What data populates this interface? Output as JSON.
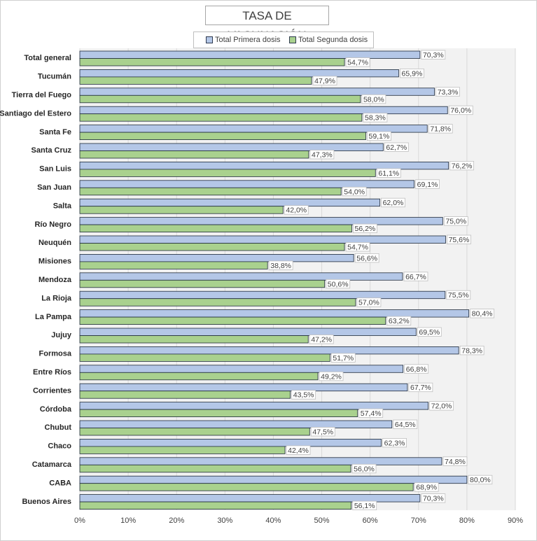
{
  "chart_data": {
    "type": "bar",
    "orientation": "horizontal",
    "title": "TASA DE VACUNACIÓN",
    "categories": [
      "Total general",
      "Tucumán",
      "Tierra del Fuego",
      "Santiago del Estero",
      "Santa Fe",
      "Santa Cruz",
      "San Luis",
      "San Juan",
      "Salta",
      "Río Negro",
      "Neuquén",
      "Misiones",
      "Mendoza",
      "La Rioja",
      "La Pampa",
      "Jujuy",
      "Formosa",
      "Entre Ríos",
      "Corrientes",
      "Córdoba",
      "Chubut",
      "Chaco",
      "Catamarca",
      "CABA",
      "Buenos Aires"
    ],
    "series": [
      {
        "name": "Total Primera dosis",
        "color": "#b4c7e7",
        "values": [
          70.3,
          65.9,
          73.3,
          76.0,
          71.8,
          62.7,
          76.2,
          69.1,
          62.0,
          75.0,
          75.6,
          56.6,
          66.7,
          75.5,
          80.4,
          69.5,
          78.3,
          66.8,
          67.7,
          72.0,
          64.5,
          62.3,
          74.8,
          80.0,
          70.3
        ],
        "labels": [
          "70,3%",
          "65,9%",
          "73,3%",
          "76,0%",
          "71,8%",
          "62,7%",
          "76,2%",
          "69,1%",
          "62,0%",
          "75,0%",
          "75,6%",
          "56,6%",
          "66,7%",
          "75,5%",
          "80,4%",
          "69,5%",
          "78,3%",
          "66,8%",
          "67,7%",
          "72,0%",
          "64,5%",
          "62,3%",
          "74,8%",
          "80,0%",
          "70,3%"
        ]
      },
      {
        "name": "Total Segunda dosis",
        "color": "#a9d18e",
        "values": [
          54.7,
          47.9,
          58.0,
          58.3,
          59.1,
          47.3,
          61.1,
          54.0,
          42.0,
          56.2,
          54.7,
          38.8,
          50.6,
          57.0,
          63.2,
          47.2,
          51.7,
          49.2,
          43.5,
          57.4,
          47.5,
          42.4,
          56.0,
          68.9,
          56.1
        ],
        "labels": [
          "54,7%",
          "47,9%",
          "58,0%",
          "58,3%",
          "59,1%",
          "47,3%",
          "61,1%",
          "54,0%",
          "42,0%",
          "56,2%",
          "54,7%",
          "38,8%",
          "50,6%",
          "57,0%",
          "63,2%",
          "47,2%",
          "51,7%",
          "49,2%",
          "43,5%",
          "57,4%",
          "47,5%",
          "42,4%",
          "56,0%",
          "68,9%",
          "56,1%"
        ]
      }
    ],
    "xlim": [
      0,
      90
    ],
    "xticks": [
      "0%",
      "10%",
      "20%",
      "30%",
      "40%",
      "50%",
      "60%",
      "70%",
      "80%",
      "90%"
    ],
    "grid": true,
    "legend_position": "top"
  }
}
